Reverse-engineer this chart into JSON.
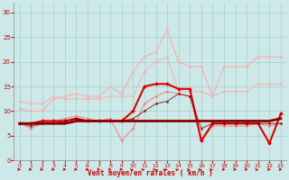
{
  "xlabel": "Vent moyen/en rafales ( km/h )",
  "xlabel_color": "#cc0000",
  "background_color": "#cce8e8",
  "grid_color": "#aacccc",
  "x_ticks": [
    0,
    1,
    2,
    3,
    4,
    5,
    6,
    7,
    8,
    9,
    10,
    11,
    12,
    13,
    14,
    15,
    16,
    17,
    18,
    19,
    20,
    21,
    22,
    23
  ],
  "xlim": [
    -0.5,
    23.5
  ],
  "ylim": [
    0,
    32
  ],
  "y_ticks": [
    0,
    5,
    10,
    15,
    20,
    25,
    30
  ],
  "lines": [
    {
      "color": "#ffaaaa",
      "alpha": 1.0,
      "linewidth": 0.8,
      "marker": "D",
      "markersize": 1.5,
      "x": [
        0,
        1,
        2,
        3,
        4,
        5,
        6,
        7,
        8,
        9,
        10,
        11,
        12,
        13,
        14,
        15,
        16,
        17,
        18,
        19,
        20,
        21,
        22,
        23
      ],
      "y": [
        10.5,
        10.0,
        10.0,
        12.5,
        13.0,
        13.5,
        13.0,
        13.0,
        15.0,
        13.5,
        18.0,
        21.0,
        22.0,
        26.5,
        20.0,
        19.0,
        19.0,
        13.0,
        19.0,
        19.0,
        19.0,
        21.0,
        21.0,
        21.0
      ]
    },
    {
      "color": "#ffaaaa",
      "alpha": 0.8,
      "linewidth": 0.8,
      "marker": "D",
      "markersize": 1.5,
      "x": [
        0,
        1,
        2,
        3,
        4,
        5,
        6,
        7,
        8,
        9,
        10,
        11,
        12,
        13,
        14,
        15,
        16,
        17,
        18,
        19,
        20,
        21,
        22,
        23
      ],
      "y": [
        12.0,
        11.5,
        11.5,
        13.0,
        12.5,
        12.5,
        12.5,
        12.5,
        13.0,
        13.0,
        13.0,
        18.0,
        20.0,
        21.0,
        14.0,
        14.0,
        14.0,
        13.0,
        14.0,
        14.0,
        14.0,
        15.5,
        15.5,
        15.5
      ]
    },
    {
      "color": "#ff7777",
      "alpha": 0.85,
      "linewidth": 0.8,
      "marker": "D",
      "markersize": 1.5,
      "x": [
        0,
        1,
        2,
        3,
        4,
        5,
        6,
        7,
        8,
        9,
        10,
        11,
        12,
        13,
        14,
        15,
        16,
        17,
        18,
        19,
        20,
        21,
        22,
        23
      ],
      "y": [
        7.5,
        6.5,
        7.5,
        8.0,
        8.5,
        9.0,
        8.5,
        8.0,
        8.5,
        4.0,
        6.5,
        11.5,
        13.0,
        14.0,
        13.5,
        13.0,
        4.0,
        7.0,
        7.0,
        7.0,
        7.0,
        7.5,
        7.0,
        7.5
      ]
    },
    {
      "color": "#dd0000",
      "alpha": 1.0,
      "linewidth": 1.5,
      "marker": "D",
      "markersize": 2.0,
      "x": [
        0,
        1,
        2,
        3,
        4,
        5,
        6,
        7,
        8,
        9,
        10,
        11,
        12,
        13,
        14,
        15,
        16,
        17,
        18,
        19,
        20,
        21,
        22,
        23
      ],
      "y": [
        7.5,
        7.5,
        8.0,
        8.0,
        8.0,
        8.5,
        8.0,
        8.0,
        8.0,
        8.0,
        10.0,
        15.0,
        15.5,
        15.5,
        14.5,
        14.5,
        4.0,
        7.5,
        7.5,
        7.5,
        7.5,
        7.5,
        3.5,
        9.5
      ]
    },
    {
      "color": "#880000",
      "alpha": 0.7,
      "linewidth": 0.8,
      "marker": "D",
      "markersize": 1.5,
      "x": [
        0,
        1,
        2,
        3,
        4,
        5,
        6,
        7,
        8,
        9,
        10,
        11,
        12,
        13,
        14,
        15,
        16,
        17,
        18,
        19,
        20,
        21,
        22,
        23
      ],
      "y": [
        7.5,
        7.0,
        7.5,
        7.5,
        8.0,
        8.5,
        8.0,
        8.0,
        8.0,
        8.0,
        8.5,
        10.0,
        11.5,
        12.0,
        13.5,
        13.0,
        6.5,
        7.5,
        7.5,
        7.5,
        7.5,
        7.5,
        7.5,
        7.5
      ]
    },
    {
      "color": "#880000",
      "alpha": 1.0,
      "linewidth": 2.0,
      "marker": null,
      "markersize": 0,
      "x": [
        0,
        1,
        2,
        3,
        4,
        5,
        6,
        7,
        8,
        9,
        10,
        11,
        12,
        13,
        14,
        15,
        16,
        17,
        18,
        19,
        20,
        21,
        22,
        23
      ],
      "y": [
        7.5,
        7.5,
        7.5,
        7.5,
        7.5,
        8.0,
        8.0,
        8.0,
        8.0,
        8.0,
        8.0,
        8.0,
        8.0,
        8.0,
        8.0,
        8.0,
        8.0,
        8.0,
        8.0,
        8.0,
        8.0,
        8.0,
        8.0,
        8.5
      ]
    }
  ],
  "arrow_color": "#cc0000",
  "arrow_angles_deg": [
    90,
    90,
    90,
    90,
    90,
    90,
    90,
    90,
    90,
    90,
    135,
    135,
    135,
    135,
    135,
    135,
    135,
    135,
    90,
    90,
    90,
    135,
    90,
    90
  ]
}
